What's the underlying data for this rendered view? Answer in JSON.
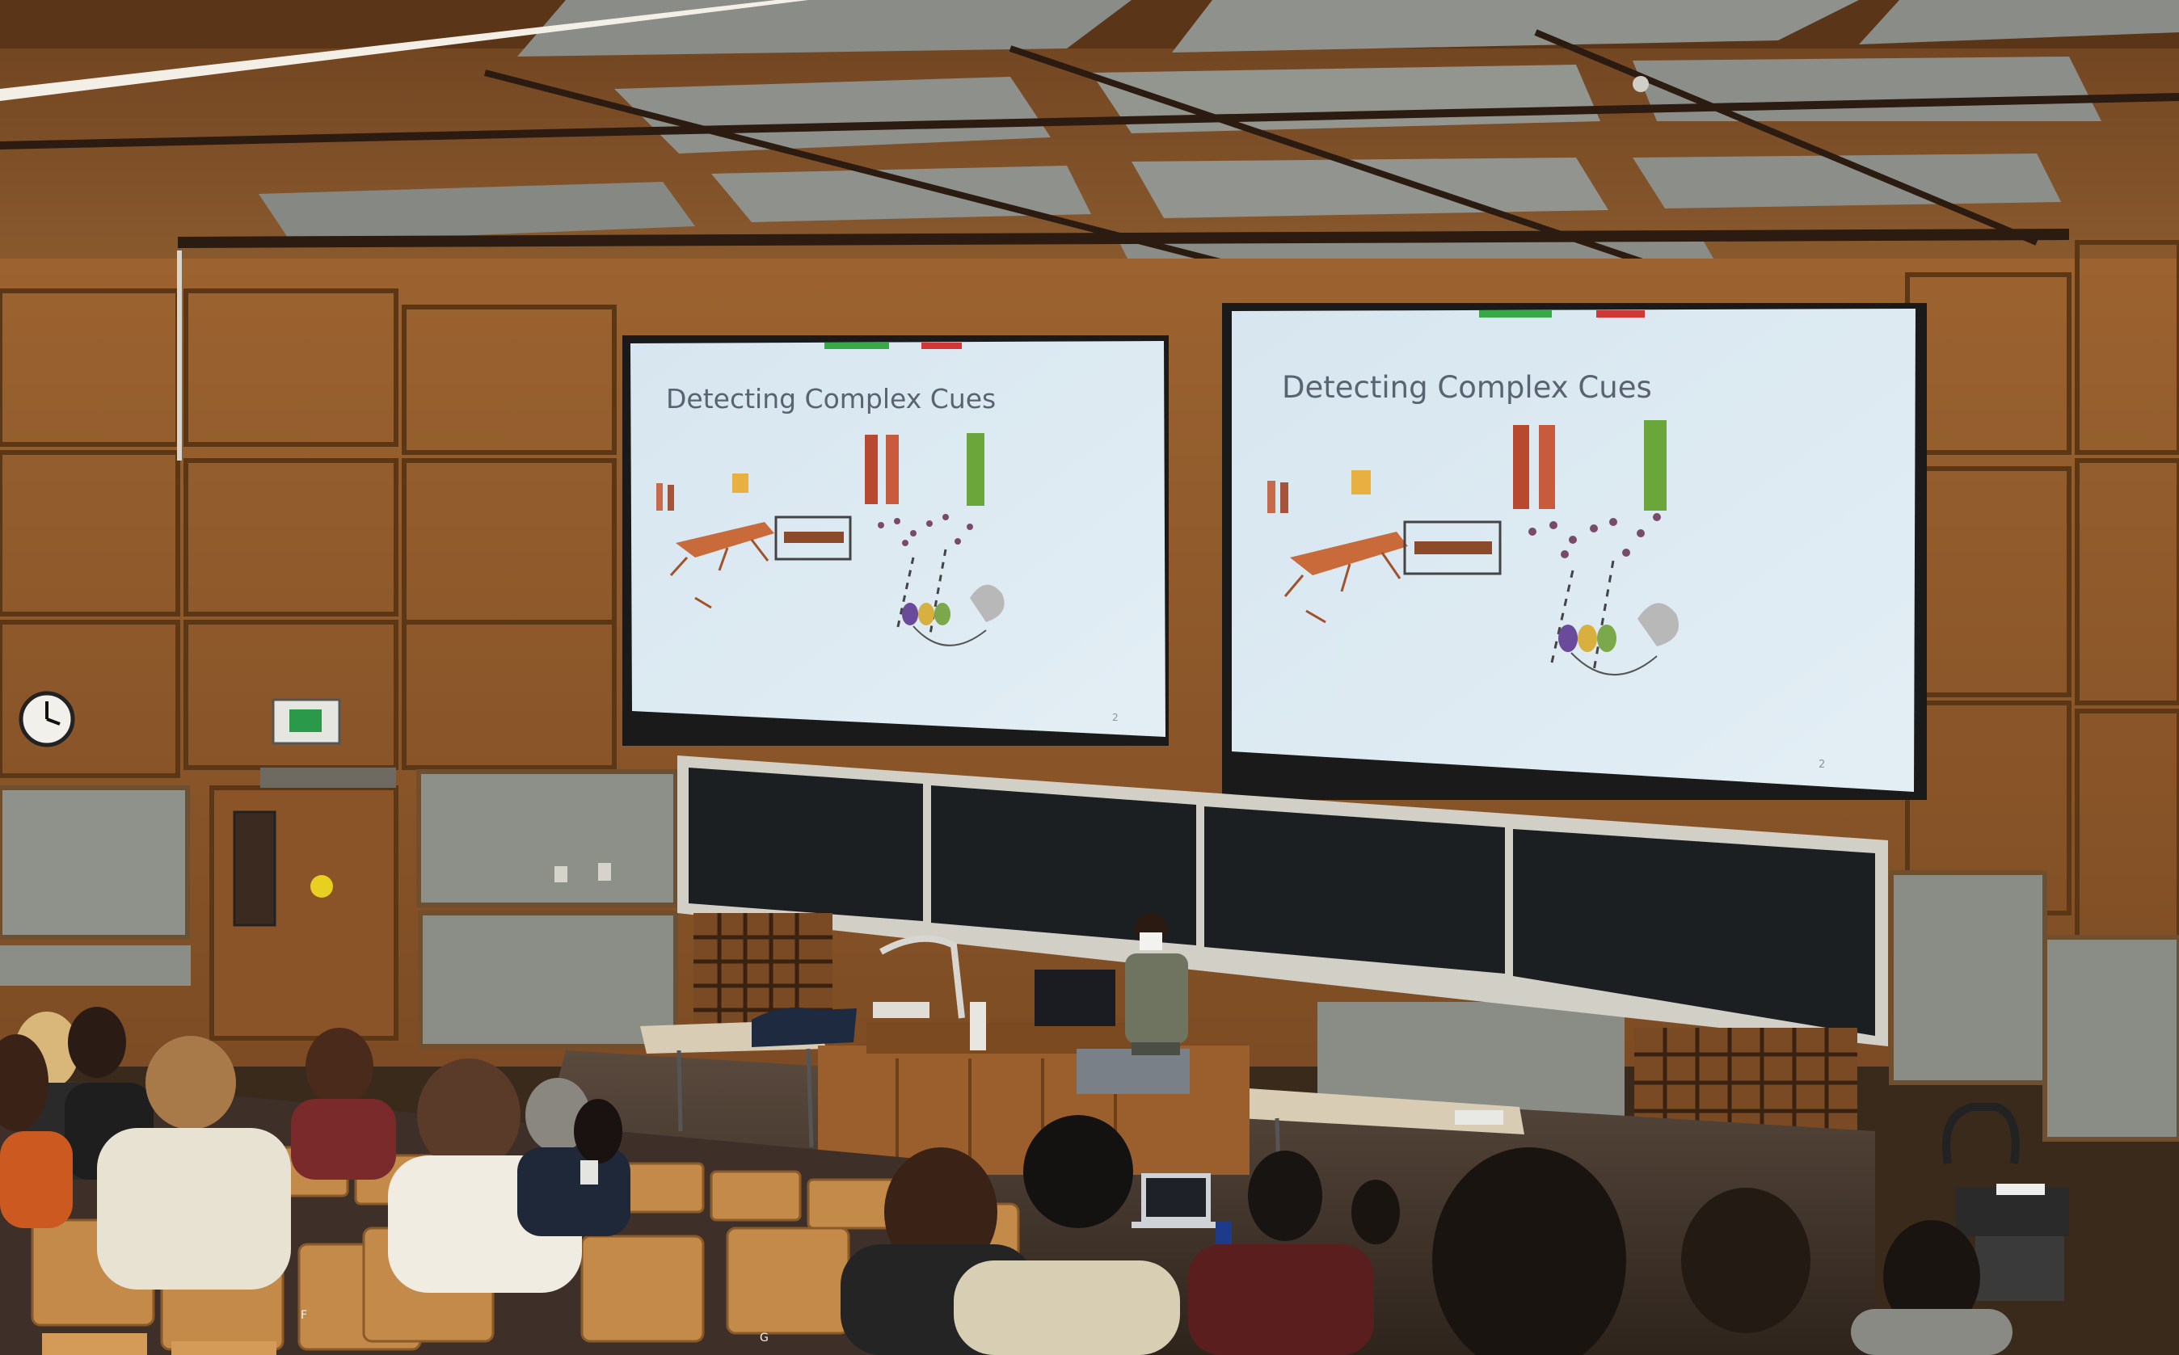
{
  "lecture_hall": {
    "screens": [
      {
        "slide_title": "Detecting Complex Cues",
        "slide_number": "2"
      },
      {
        "slide_title": "Detecting Complex Cues",
        "slide_number": "2"
      }
    ],
    "clock": {
      "hour": 9,
      "minute": 5
    },
    "seat_letters": [
      "F",
      "G"
    ],
    "colors": {
      "wood_wall": "#a86a35",
      "ceiling": "#7a4a24",
      "screen": "#dbe9f2",
      "chalkboard": "#1c1f22",
      "acoustic_panel": "#8f918b"
    }
  }
}
